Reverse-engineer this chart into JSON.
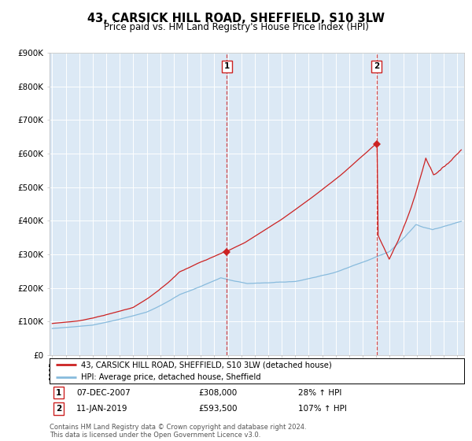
{
  "title": "43, CARSICK HILL ROAD, SHEFFIELD, S10 3LW",
  "subtitle": "Price paid vs. HM Land Registry's House Price Index (HPI)",
  "title_fontsize": 10.5,
  "subtitle_fontsize": 8.5,
  "plot_bg_color": "#dce9f5",
  "ylim": [
    0,
    900000
  ],
  "yticks": [
    0,
    100000,
    200000,
    300000,
    400000,
    500000,
    600000,
    700000,
    800000,
    900000
  ],
  "ytick_labels": [
    "£0",
    "£100K",
    "£200K",
    "£300K",
    "£400K",
    "£500K",
    "£600K",
    "£700K",
    "£800K",
    "£900K"
  ],
  "red_color": "#cc2222",
  "blue_color": "#88bbdd",
  "marker_color": "#cc2222",
  "legend_label_red": "43, CARSICK HILL ROAD, SHEFFIELD, S10 3LW (detached house)",
  "legend_label_blue": "HPI: Average price, detached house, Sheffield",
  "sale1_date": 2007.92,
  "sale1_price": 308000,
  "sale2_date": 2019.04,
  "sale2_price": 593500,
  "annotation1_date": "07-DEC-2007",
  "annotation1_price": "£308,000",
  "annotation1_hpi": "28% ↑ HPI",
  "annotation2_date": "11-JAN-2019",
  "annotation2_price": "£593,500",
  "annotation2_hpi": "107% ↑ HPI",
  "footnote": "Contains HM Land Registry data © Crown copyright and database right 2024.\nThis data is licensed under the Open Government Licence v3.0.",
  "xmin": 1994.8,
  "xmax": 2025.5
}
